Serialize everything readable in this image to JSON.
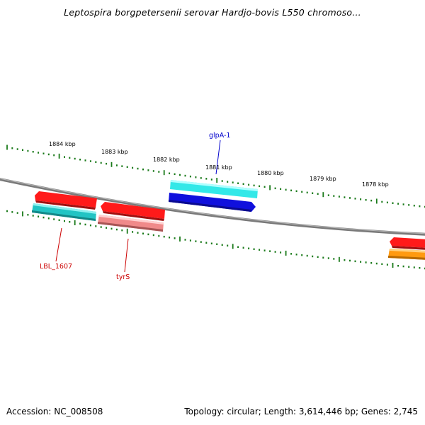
{
  "title": "Leptospira borgpetersenii serovar Hardjo-bovis L550 chromoso...",
  "footer": {
    "accession": "Accession: NC_008508",
    "summary": "Topology: circular; Length: 3,614,446 bp; Genes: 2,745"
  },
  "kbp_labels": [
    "1884 kbp",
    "1883 kbp",
    "1882 kbp",
    "1881 kbp",
    "1880 kbp",
    "1879 kbp",
    "1878 kbp"
  ],
  "gene_labels": [
    {
      "text": "glpA-1",
      "color": "#0000cc"
    },
    {
      "text": "LBL_1607",
      "color": "#cc0000"
    },
    {
      "text": "tyrS",
      "color": "#cc0000"
    }
  ],
  "colors": {
    "backbone": "#808080",
    "tick": "#1a7a1a",
    "forward_red": "#ff1a1a",
    "cyan": "#33e0e0",
    "teal": "#22bbbb",
    "blue": "#1010dd",
    "pink": "#f08a8a",
    "orange": "#ff9a10"
  }
}
